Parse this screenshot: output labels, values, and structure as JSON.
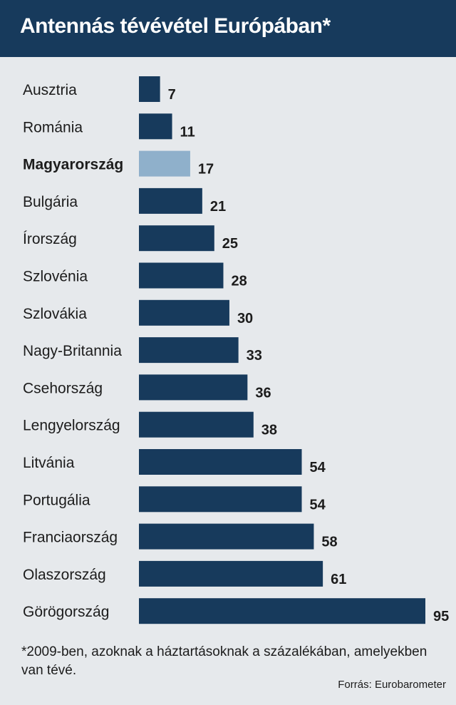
{
  "chart_data": {
    "type": "bar",
    "orientation": "horizontal",
    "title": "Antennás tévévétel Európában*",
    "categories": [
      "Ausztria",
      "Románia",
      "Magyarország",
      "Bulgária",
      "Írország",
      "Szlovénia",
      "Szlovákia",
      "Nagy-Britannia",
      "Csehország",
      "Lengyelország",
      "Litvánia",
      "Portugália",
      "Franciaország",
      "Olaszország",
      "Görögország"
    ],
    "values": [
      7,
      11,
      17,
      21,
      25,
      28,
      30,
      33,
      36,
      38,
      54,
      54,
      58,
      61,
      95
    ],
    "highlight": "Magyarország",
    "xlim": [
      0,
      95
    ],
    "grid": false,
    "legend": "none",
    "colors": {
      "bar": "#173a5c",
      "highlight": "#8fb0cb"
    }
  },
  "footnote": "*2009-ben, azoknak a háztartásoknak a százalékában, amelyekben van tévé.",
  "source": "Forrás: Eurobarometer"
}
